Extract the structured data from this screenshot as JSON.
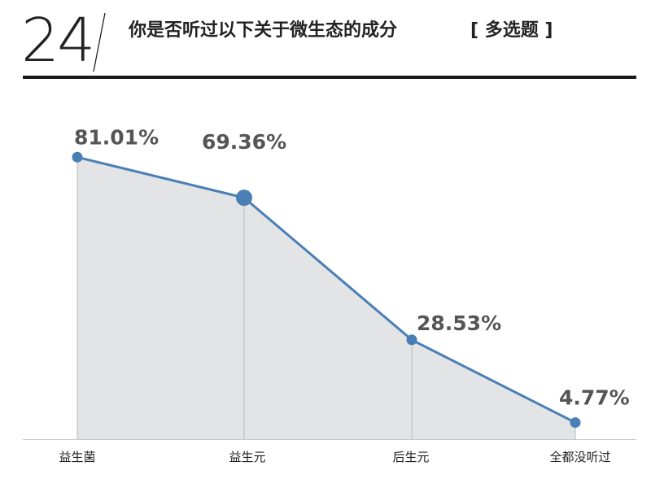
{
  "header": {
    "number": "24",
    "title": "你是否听过以下关于微生态的成分",
    "question_type": "[ 多选题 ]"
  },
  "colors": {
    "line": "#4a7fb5",
    "area": "#e3e4e6",
    "guide": "#b8b8b8",
    "label": "#555555"
  },
  "chart_data": {
    "type": "area",
    "categories": [
      "益生菌",
      "益生元",
      "后生元",
      "全都没听过"
    ],
    "values": [
      81.01,
      69.36,
      28.53,
      4.77
    ],
    "value_labels": [
      "81.01%",
      "69.36%",
      "28.53%",
      "4.77%"
    ],
    "ylim": [
      0,
      100
    ],
    "grid": false,
    "legend": "none",
    "highlight_index": 1
  }
}
